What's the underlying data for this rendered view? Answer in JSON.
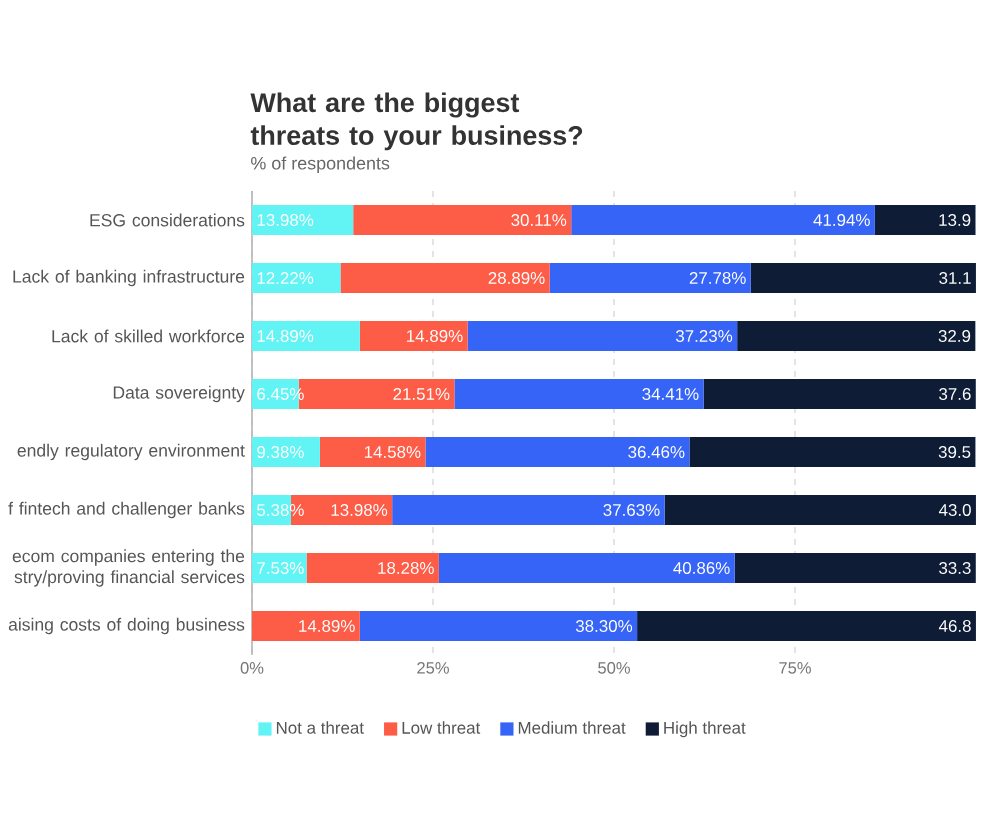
{
  "chart_data": {
    "type": "bar",
    "orientation": "horizontal",
    "stacked": true,
    "title": "What are the biggest threats to your business?",
    "subtitle": "% of respondents",
    "categories": [
      "ESG considerations",
      "Lack of banking infrastructure",
      "Lack of skilled workforce",
      "Data sovereignty",
      "endly regulatory environment",
      "f fintech and challenger banks",
      "ecom companies entering the stry/proving financial services",
      "aising costs of doing business"
    ],
    "series": [
      {
        "name": "Not a threat",
        "color": "#62f3f5",
        "values": [
          13.98,
          12.22,
          14.89,
          6.45,
          9.38,
          5.38,
          7.53,
          null
        ],
        "value_labels": [
          "13.98%",
          "12.22%",
          "14.89%",
          "6.45%",
          "9.38%",
          "5.38%",
          "7.53%",
          null
        ]
      },
      {
        "name": "Low threat",
        "color": "#fd5c47",
        "values": [
          30.11,
          28.89,
          14.89,
          21.51,
          14.58,
          13.98,
          18.28,
          14.89
        ],
        "value_labels": [
          "30.11%",
          "28.89%",
          "14.89%",
          "21.51%",
          "14.58%",
          "13.98%",
          "18.28%",
          "14.89%"
        ]
      },
      {
        "name": "Medium threat",
        "color": "#3564f6",
        "values": [
          41.94,
          27.78,
          37.23,
          34.41,
          36.46,
          37.63,
          40.86,
          38.3
        ],
        "value_labels": [
          "41.94%",
          "27.78%",
          "37.23%",
          "34.41%",
          "36.46%",
          "37.63%",
          "40.86%",
          "38.30%"
        ]
      },
      {
        "name": "High threat",
        "color": "#0e1c36",
        "values": [
          13.9,
          31.1,
          32.9,
          37.6,
          39.5,
          43.0,
          33.3,
          46.8
        ],
        "value_labels": [
          "13.9",
          "31.1",
          "32.9",
          "37.6",
          "39.5",
          "43.0",
          "33.3",
          "46.8"
        ]
      }
    ],
    "xlim": [
      0,
      100
    ],
    "xticks": [
      {
        "value": 0,
        "label": "0%"
      },
      {
        "value": 25,
        "label": "25%"
      },
      {
        "value": 50,
        "label": "50%"
      },
      {
        "value": 75,
        "label": "75%"
      }
    ],
    "grid": "x",
    "legend": "bottom"
  }
}
